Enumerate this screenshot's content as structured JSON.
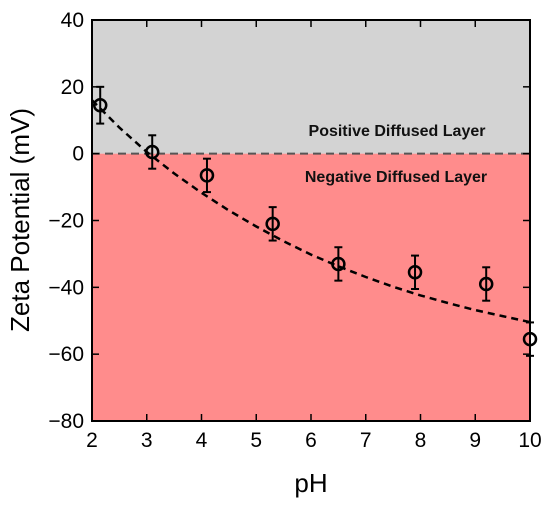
{
  "chart_data": {
    "type": "scatter",
    "title": "",
    "xlabel": "pH",
    "ylabel": "Zeta Potential (mV)",
    "xlim": [
      2,
      10
    ],
    "ylim": [
      -80,
      40
    ],
    "xticks": [
      "2",
      "3",
      "4",
      "5",
      "6",
      "7",
      "8",
      "9",
      "10"
    ],
    "yticks": [
      "40",
      "20",
      "0",
      "−20",
      "−40",
      "−60",
      "−80"
    ],
    "grid": false,
    "legend": "none",
    "regions": [
      {
        "name": "Positive Diffused Layer",
        "y_from": 0,
        "y_to": 40,
        "color": "#d3d3d3"
      },
      {
        "name": "Negative Diffused Layer",
        "y_from": -80,
        "y_to": 0,
        "color": "#ff8c8c"
      }
    ],
    "reference_line": {
      "y": 0,
      "style": "dashed",
      "color": "#555555"
    },
    "series": [
      {
        "marker": "open-circle",
        "x": [
          2.15,
          3.1,
          4.1,
          5.3,
          6.5,
          7.9,
          9.2,
          10.0
        ],
        "y": [
          14.5,
          0.5,
          -6.5,
          -21.0,
          -33.0,
          -35.5,
          -39.0,
          -55.5
        ],
        "yerr": [
          5.5,
          5.0,
          5.0,
          5.0,
          5.0,
          5.0,
          5.0,
          5.0
        ]
      }
    ],
    "fit_line": {
      "style": "dashed",
      "x": [
        2.0,
        2.5,
        3.0,
        3.5,
        4.0,
        4.5,
        5.0,
        5.5,
        6.0,
        6.5,
        7.0,
        7.5,
        8.0,
        8.5,
        9.0,
        9.5,
        10.0
      ],
      "y": [
        16.0,
        7.8,
        0.5,
        -5.9,
        -11.7,
        -17.0,
        -21.8,
        -26.2,
        -30.2,
        -33.7,
        -36.9,
        -39.8,
        -42.4,
        -44.7,
        -46.8,
        -48.6,
        -50.4
      ]
    }
  }
}
